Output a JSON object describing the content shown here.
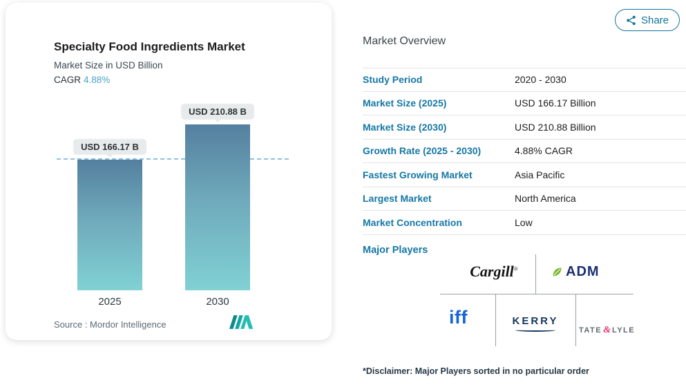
{
  "share": {
    "label": "Share"
  },
  "card": {
    "title": "Specialty Food Ingredients Market",
    "subtitle": "Market Size in USD Billion",
    "cagr_label": "CAGR",
    "cagr_value": "4.88%",
    "source": "Source :  Mordor Intelligence"
  },
  "chart_data": {
    "type": "bar",
    "title": "Specialty Food Ingredients Market",
    "ylabel": "Market Size in USD Billion",
    "categories": [
      "2025",
      "2030"
    ],
    "values": [
      166.17,
      210.88
    ],
    "bar_labels": [
      "USD 166.17 B",
      "USD 210.88 B"
    ],
    "ylim": [
      0,
      230
    ],
    "grid": false,
    "reference_line": 166.17,
    "cagr": "4.88%"
  },
  "overview": {
    "heading": "Market Overview",
    "rows": [
      {
        "label": "Study Period",
        "value": "2020 - 2030"
      },
      {
        "label": "Market Size (2025)",
        "value": "USD 166.17 Billion"
      },
      {
        "label": "Market Size (2030)",
        "value": "USD 210.88 Billion"
      },
      {
        "label": "Growth Rate (2025 - 2030)",
        "value": "4.88% CAGR"
      },
      {
        "label": "Fastest Growing Market",
        "value": "Asia Pacific"
      },
      {
        "label": "Largest Market",
        "value": "North America"
      },
      {
        "label": "Market Concentration",
        "value": "Low"
      }
    ]
  },
  "major_players": {
    "heading": "Major Players",
    "logos": {
      "cargill": "Cargill",
      "cargill_mark": "®",
      "adm": "ADM",
      "iff": "iff",
      "kerry": "KERRY",
      "tate": "TATE",
      "amp": "&",
      "lyle": "LYLE"
    },
    "disclaimer": "*Disclaimer: Major Players sorted in no particular order"
  },
  "colors": {
    "accent_blue": "#1577a5",
    "cagr_value_blue": "#4aa3c9",
    "bar_top": "#54809f",
    "bar_bottom": "#80d1d4",
    "dashed_line": "#8fc0de",
    "tooltip_bg": "#e8ebeb"
  }
}
